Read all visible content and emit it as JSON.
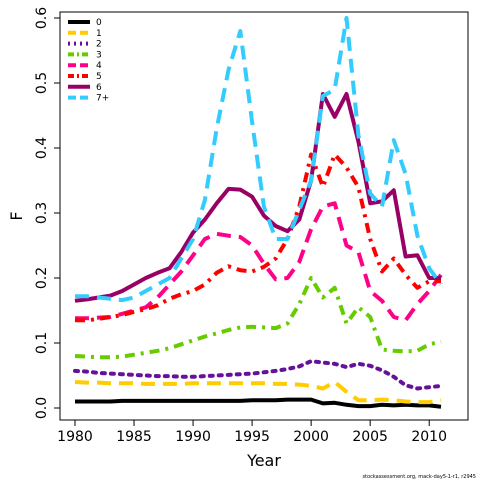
{
  "chart_data": {
    "type": "line",
    "xlabel": "Year",
    "ylabel": "F",
    "xlim": [
      1980,
      2011
    ],
    "ylim": [
      0,
      0.6
    ],
    "x_ticks": [
      1980,
      1985,
      1990,
      1995,
      2000,
      2005,
      2010
    ],
    "y_ticks": [
      0.0,
      0.1,
      0.2,
      0.3,
      0.4,
      0.5,
      0.6
    ],
    "y_tick_labels": [
      "0.0",
      "0.1",
      "0.2",
      "0.3",
      "0.4",
      "0.5",
      "0.6"
    ],
    "grid": false,
    "legend_position": "top-left",
    "x": [
      1980,
      1981,
      1982,
      1983,
      1984,
      1985,
      1986,
      1987,
      1988,
      1989,
      1990,
      1991,
      1992,
      1993,
      1994,
      1995,
      1996,
      1997,
      1998,
      1999,
      2000,
      2001,
      2002,
      2003,
      2004,
      2005,
      2006,
      2007,
      2008,
      2009,
      2010,
      2011
    ],
    "series": [
      {
        "name": "0",
        "color": "#000000",
        "dash": "solid",
        "values": [
          0.01,
          0.01,
          0.01,
          0.01,
          0.011,
          0.011,
          0.011,
          0.011,
          0.011,
          0.011,
          0.011,
          0.011,
          0.011,
          0.011,
          0.011,
          0.012,
          0.012,
          0.012,
          0.013,
          0.013,
          0.013,
          0.007,
          0.008,
          0.005,
          0.003,
          0.003,
          0.005,
          0.004,
          0.005,
          0.004,
          0.004,
          0.002
        ]
      },
      {
        "name": "1",
        "color": "#ffcc00",
        "dash": "long",
        "values": [
          0.04,
          0.039,
          0.039,
          0.038,
          0.038,
          0.038,
          0.037,
          0.037,
          0.037,
          0.037,
          0.038,
          0.038,
          0.038,
          0.038,
          0.038,
          0.038,
          0.038,
          0.037,
          0.037,
          0.036,
          0.034,
          0.03,
          0.04,
          0.025,
          0.012,
          0.012,
          0.013,
          0.012,
          0.01,
          0.009,
          0.009,
          0.012
        ]
      },
      {
        "name": "2",
        "color": "#66119a",
        "dash": "dot",
        "values": [
          0.057,
          0.056,
          0.054,
          0.053,
          0.052,
          0.051,
          0.05,
          0.049,
          0.049,
          0.048,
          0.048,
          0.049,
          0.05,
          0.051,
          0.052,
          0.053,
          0.055,
          0.057,
          0.06,
          0.064,
          0.072,
          0.07,
          0.068,
          0.063,
          0.068,
          0.065,
          0.058,
          0.048,
          0.035,
          0.03,
          0.032,
          0.034
        ]
      },
      {
        "name": "3",
        "color": "#66cc00",
        "dash": "dashdot",
        "values": [
          0.08,
          0.079,
          0.078,
          0.078,
          0.079,
          0.082,
          0.085,
          0.088,
          0.092,
          0.098,
          0.104,
          0.11,
          0.115,
          0.12,
          0.124,
          0.125,
          0.124,
          0.123,
          0.13,
          0.16,
          0.2,
          0.17,
          0.185,
          0.13,
          0.155,
          0.14,
          0.09,
          0.088,
          0.087,
          0.088,
          0.098,
          0.102
        ]
      },
      {
        "name": "4",
        "color": "#ff0088",
        "dash": "long",
        "values": [
          0.138,
          0.138,
          0.139,
          0.14,
          0.145,
          0.15,
          0.155,
          0.17,
          0.19,
          0.21,
          0.235,
          0.26,
          0.268,
          0.265,
          0.263,
          0.25,
          0.222,
          0.198,
          0.2,
          0.225,
          0.275,
          0.31,
          0.315,
          0.25,
          0.24,
          0.18,
          0.165,
          0.14,
          0.135,
          0.16,
          0.18,
          0.205
        ]
      },
      {
        "name": "5",
        "color": "#ff0000",
        "dash": "dashdot",
        "values": [
          0.135,
          0.135,
          0.137,
          0.14,
          0.143,
          0.148,
          0.152,
          0.158,
          0.168,
          0.175,
          0.18,
          0.19,
          0.208,
          0.218,
          0.212,
          0.21,
          0.217,
          0.23,
          0.26,
          0.31,
          0.39,
          0.34,
          0.39,
          0.37,
          0.34,
          0.26,
          0.21,
          0.23,
          0.205,
          0.185,
          0.195,
          0.195
        ]
      },
      {
        "name": "6",
        "color": "#990066",
        "dash": "solid",
        "values": [
          0.165,
          0.167,
          0.17,
          0.173,
          0.18,
          0.19,
          0.2,
          0.208,
          0.215,
          0.24,
          0.27,
          0.29,
          0.315,
          0.337,
          0.336,
          0.325,
          0.296,
          0.28,
          0.272,
          0.29,
          0.35,
          0.483,
          0.448,
          0.483,
          0.41,
          0.315,
          0.318,
          0.335,
          0.233,
          0.235,
          0.2,
          0.2
        ]
      },
      {
        "name": "7+",
        "color": "#33ccff",
        "dash": "long",
        "values": [
          0.172,
          0.172,
          0.17,
          0.168,
          0.166,
          0.17,
          0.18,
          0.19,
          0.2,
          0.23,
          0.26,
          0.32,
          0.43,
          0.52,
          0.58,
          0.44,
          0.31,
          0.26,
          0.26,
          0.305,
          0.35,
          0.48,
          0.49,
          0.6,
          0.42,
          0.33,
          0.31,
          0.412,
          0.36,
          0.265,
          0.215,
          0.19
        ]
      }
    ],
    "credit": "stockassessment.org, mack-day5-1-r1, r2945"
  }
}
